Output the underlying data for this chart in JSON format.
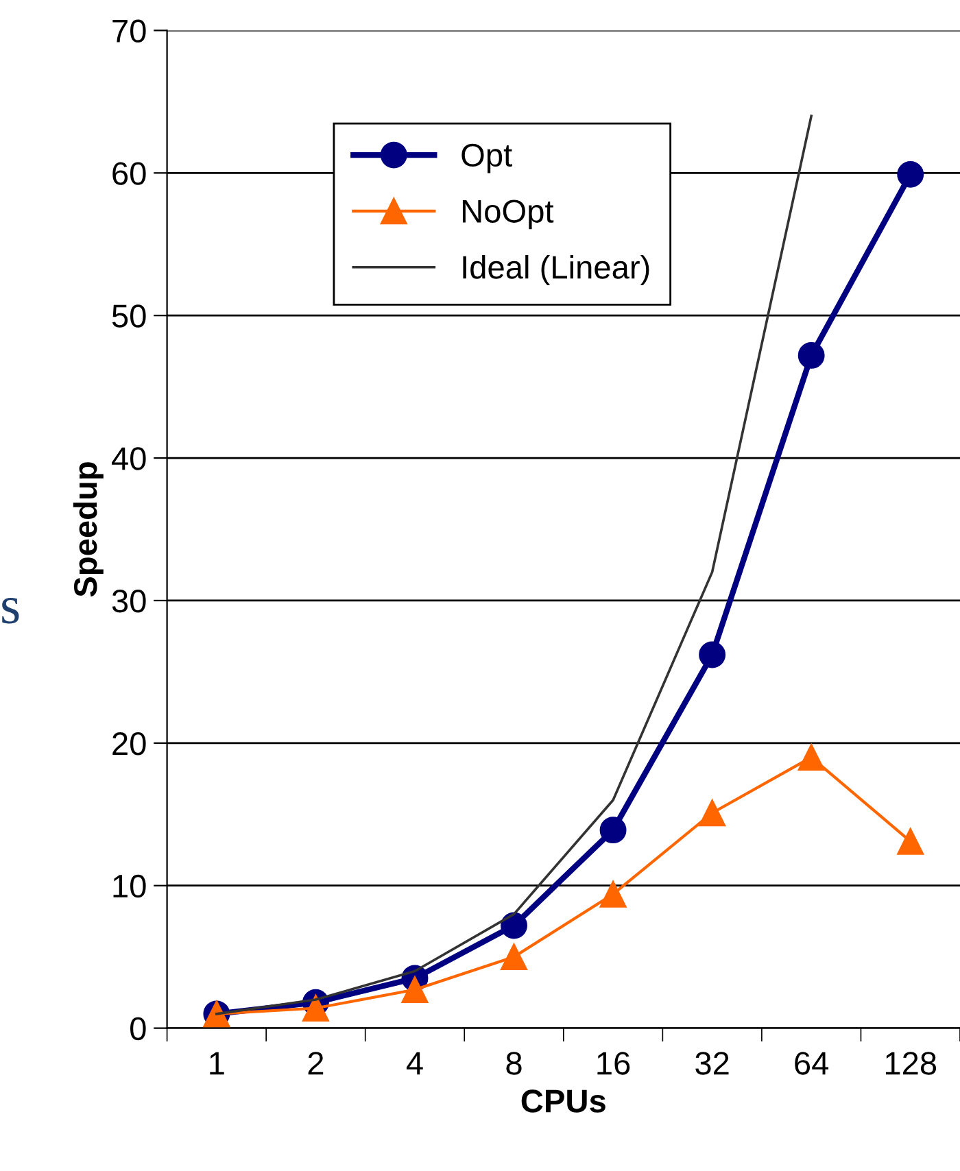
{
  "chart_data": {
    "type": "line",
    "xlabel": "CPUs",
    "ylabel": "Speedup",
    "categories": [
      "1",
      "2",
      "4",
      "8",
      "16",
      "32",
      "64",
      "128"
    ],
    "series": [
      {
        "name": "Opt",
        "color": "#000080",
        "marker": "circle",
        "values": [
          1,
          1.8,
          3.5,
          7.2,
          13.9,
          26.2,
          47.2,
          59.9
        ]
      },
      {
        "name": "NoOpt",
        "color": "#ff6600",
        "marker": "triangle",
        "values": [
          1,
          1.4,
          2.7,
          5.0,
          9.4,
          15.1,
          19.0,
          13.1
        ]
      },
      {
        "name": "Ideal (Linear)",
        "color": "#333333",
        "marker": "none",
        "values": [
          1,
          2,
          4,
          8,
          16,
          32,
          64,
          null
        ]
      }
    ],
    "ylim": [
      0,
      70
    ],
    "yticks": [
      0,
      10,
      20,
      30,
      40,
      50,
      60,
      70
    ],
    "grid": "y",
    "legend": "top left",
    "annotations": [
      "s"
    ]
  }
}
